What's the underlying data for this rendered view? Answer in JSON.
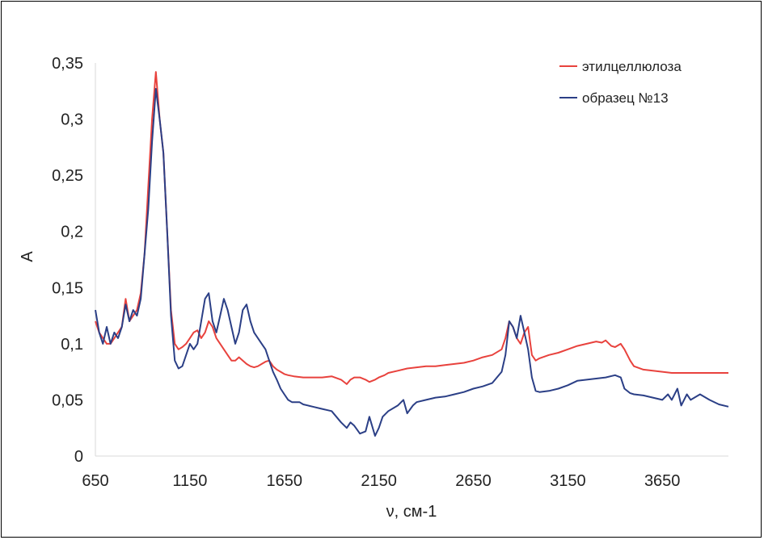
{
  "chart_data": {
    "type": "line",
    "title": "",
    "xlabel": "ν, см-1",
    "ylabel": "A",
    "xlim": [
      650,
      4000
    ],
    "ylim": [
      0,
      0.35
    ],
    "xticks": [
      650,
      1150,
      1650,
      2150,
      2650,
      3150,
      3650
    ],
    "xtick_labels": [
      "650",
      "1150",
      "1650",
      "2150",
      "2650",
      "3150",
      "3650"
    ],
    "yticks": [
      0,
      0.05,
      0.1,
      0.15,
      0.2,
      0.25,
      0.3,
      0.35
    ],
    "ytick_labels": [
      "0",
      "0,05",
      "0,1",
      "0,15",
      "0,2",
      "0,25",
      "0,3",
      "0,35"
    ],
    "grid": false,
    "legend_position": "top-right",
    "series": [
      {
        "name": "этилцеллюлоза",
        "color": "#e8423d",
        "x": [
          650,
          670,
          690,
          710,
          730,
          750,
          770,
          790,
          810,
          830,
          850,
          870,
          890,
          910,
          930,
          950,
          970,
          990,
          1010,
          1030,
          1050,
          1070,
          1090,
          1110,
          1130,
          1150,
          1170,
          1190,
          1210,
          1230,
          1250,
          1270,
          1290,
          1310,
          1330,
          1350,
          1370,
          1390,
          1410,
          1430,
          1450,
          1470,
          1490,
          1510,
          1530,
          1550,
          1570,
          1590,
          1610,
          1630,
          1650,
          1670,
          1700,
          1750,
          1800,
          1850,
          1900,
          1950,
          1980,
          2000,
          2020,
          2050,
          2080,
          2100,
          2130,
          2150,
          2180,
          2200,
          2250,
          2300,
          2350,
          2400,
          2450,
          2500,
          2550,
          2600,
          2650,
          2700,
          2750,
          2800,
          2820,
          2840,
          2860,
          2880,
          2900,
          2920,
          2940,
          2960,
          2980,
          3000,
          3050,
          3100,
          3150,
          3200,
          3250,
          3300,
          3330,
          3350,
          3380,
          3400,
          3430,
          3450,
          3480,
          3500,
          3550,
          3600,
          3650,
          3700,
          3750,
          3800,
          3850,
          3900,
          3950,
          4000
        ],
        "values": [
          0.12,
          0.11,
          0.105,
          0.1,
          0.1,
          0.105,
          0.11,
          0.115,
          0.14,
          0.12,
          0.125,
          0.13,
          0.145,
          0.18,
          0.24,
          0.3,
          0.342,
          0.3,
          0.27,
          0.2,
          0.13,
          0.1,
          0.095,
          0.097,
          0.1,
          0.105,
          0.11,
          0.112,
          0.105,
          0.11,
          0.12,
          0.115,
          0.105,
          0.1,
          0.095,
          0.09,
          0.085,
          0.085,
          0.088,
          0.085,
          0.082,
          0.08,
          0.079,
          0.08,
          0.082,
          0.084,
          0.085,
          0.08,
          0.077,
          0.075,
          0.073,
          0.072,
          0.071,
          0.07,
          0.07,
          0.07,
          0.071,
          0.068,
          0.064,
          0.068,
          0.07,
          0.07,
          0.068,
          0.066,
          0.068,
          0.07,
          0.072,
          0.074,
          0.076,
          0.078,
          0.079,
          0.08,
          0.08,
          0.081,
          0.082,
          0.083,
          0.085,
          0.088,
          0.09,
          0.095,
          0.105,
          0.12,
          0.115,
          0.105,
          0.1,
          0.11,
          0.115,
          0.09,
          0.085,
          0.087,
          0.09,
          0.092,
          0.095,
          0.098,
          0.1,
          0.102,
          0.101,
          0.103,
          0.098,
          0.097,
          0.1,
          0.095,
          0.085,
          0.08,
          0.077,
          0.076,
          0.075,
          0.074,
          0.074,
          0.074,
          0.074,
          0.074,
          0.074,
          0.074
        ]
      },
      {
        "name": "образец №13",
        "color": "#2b3f86",
        "x": [
          650,
          670,
          690,
          710,
          730,
          750,
          770,
          790,
          810,
          830,
          850,
          870,
          890,
          910,
          930,
          950,
          970,
          990,
          1010,
          1030,
          1050,
          1070,
          1090,
          1110,
          1130,
          1150,
          1170,
          1190,
          1210,
          1230,
          1250,
          1270,
          1290,
          1310,
          1330,
          1350,
          1370,
          1390,
          1410,
          1430,
          1450,
          1470,
          1490,
          1510,
          1530,
          1550,
          1570,
          1590,
          1610,
          1630,
          1650,
          1670,
          1690,
          1710,
          1730,
          1750,
          1800,
          1850,
          1900,
          1950,
          1980,
          2000,
          2020,
          2050,
          2080,
          2100,
          2130,
          2150,
          2170,
          2200,
          2250,
          2280,
          2300,
          2330,
          2350,
          2400,
          2450,
          2500,
          2550,
          2600,
          2650,
          2700,
          2750,
          2800,
          2820,
          2840,
          2860,
          2880,
          2900,
          2920,
          2940,
          2960,
          2980,
          3000,
          3050,
          3100,
          3150,
          3200,
          3250,
          3300,
          3350,
          3400,
          3430,
          3450,
          3480,
          3500,
          3550,
          3600,
          3650,
          3680,
          3700,
          3730,
          3750,
          3780,
          3800,
          3850,
          3900,
          3950,
          4000
        ],
        "values": [
          0.13,
          0.11,
          0.1,
          0.115,
          0.1,
          0.11,
          0.105,
          0.115,
          0.135,
          0.12,
          0.13,
          0.125,
          0.14,
          0.18,
          0.22,
          0.28,
          0.327,
          0.3,
          0.27,
          0.2,
          0.125,
          0.085,
          0.078,
          0.08,
          0.09,
          0.1,
          0.095,
          0.1,
          0.12,
          0.14,
          0.145,
          0.12,
          0.11,
          0.125,
          0.14,
          0.13,
          0.115,
          0.1,
          0.11,
          0.13,
          0.135,
          0.12,
          0.11,
          0.105,
          0.1,
          0.095,
          0.085,
          0.075,
          0.068,
          0.06,
          0.055,
          0.05,
          0.048,
          0.048,
          0.048,
          0.046,
          0.044,
          0.042,
          0.04,
          0.03,
          0.025,
          0.03,
          0.027,
          0.02,
          0.022,
          0.035,
          0.018,
          0.025,
          0.035,
          0.04,
          0.045,
          0.05,
          0.038,
          0.045,
          0.048,
          0.05,
          0.052,
          0.053,
          0.055,
          0.057,
          0.06,
          0.062,
          0.065,
          0.075,
          0.09,
          0.12,
          0.115,
          0.105,
          0.125,
          0.11,
          0.095,
          0.07,
          0.058,
          0.057,
          0.058,
          0.06,
          0.063,
          0.067,
          0.068,
          0.069,
          0.07,
          0.072,
          0.07,
          0.06,
          0.056,
          0.055,
          0.054,
          0.052,
          0.05,
          0.055,
          0.05,
          0.06,
          0.045,
          0.055,
          0.05,
          0.055,
          0.05,
          0.046,
          0.044
        ]
      }
    ]
  }
}
